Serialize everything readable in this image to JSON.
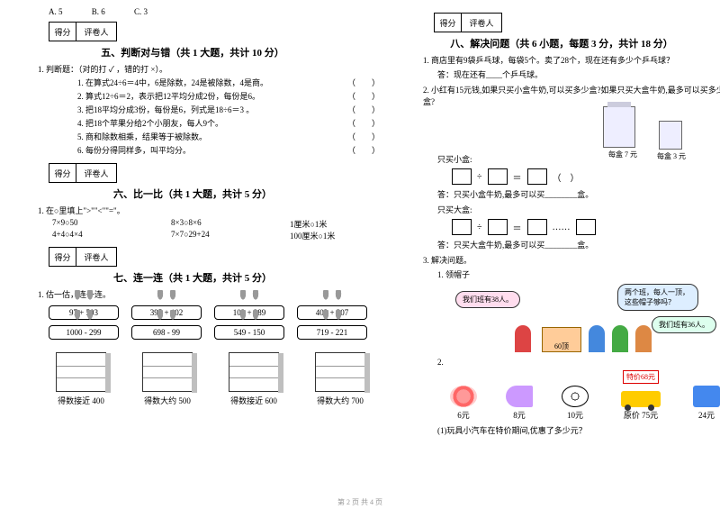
{
  "mc_options": {
    "a": "A. 5",
    "b": "B. 6",
    "c": "C. 3"
  },
  "score_header": {
    "c1": "得分",
    "c2": "评卷人"
  },
  "s5": {
    "title": "五、判断对与错（共 1 大题，共计 10 分）",
    "lead": "1. 判断题：（对的打 ✓ ，错的打 ×）。",
    "items": [
      "1. 在算式24÷6＝4中，6是除数，24是被除数，4是商。",
      "2. 算式12÷6＝2，表示把12平均分成2份，每份是6。",
      "3. 把18平均分成3份，每份是6，列式是18÷6＝3 。",
      "4. 把18个苹果分给2个小朋友，每人9个。",
      "5. 商和除数相乘，结果等于被除数。",
      "6. 每份分得同样多，叫平均分。"
    ],
    "paren": "（　　）"
  },
  "s6": {
    "title": "六、比一比（共 1 大题，共计 5 分）",
    "lead": "1. 在○里填上\">\"\"<\"\"=\"。",
    "rows": [
      [
        "7×9○50",
        "8×3○8×6",
        "1厘米○1米"
      ],
      [
        "4+4○4×4",
        "7×7○29+24",
        "100厘米○1米"
      ]
    ]
  },
  "s7": {
    "title": "七、连一连（共 1 大题，共计 5 分）",
    "lead": "1. 估一估，连一连。",
    "top": [
      "97 + 503",
      "395 + 102",
      "102 + 289",
      "403 + 307"
    ],
    "bot": [
      "1000 - 299",
      "698 - 99",
      "549 - 150",
      "719 - 221"
    ],
    "cabs": [
      "得数接近 400",
      "得数大约 500",
      "得数接近 600",
      "得数大约 700"
    ]
  },
  "s8": {
    "title": "八、解决问题（共 6 小题，每题 3 分，共计 18 分）",
    "q1": "1. 商店里有9袋乒乓球，每袋5个。卖了28个，现在还有多少个乒乓球？",
    "q1a": "答：现在还有____个乒乓球。",
    "q2": "2. 小红有15元钱,如果只买小盒牛奶,可以买多少盒?如果只买大盒牛奶,最多可以买多少盒?",
    "big_price": "每盒 7 元",
    "small_price": "每盒 3 元",
    "only_small": "只买小盒:",
    "ans_small": "答：只买小盒牛奶,最多可以买________盒。",
    "only_big": "只买大盒:",
    "ans_big": "答：只买大盒牛奶,最多可以买________盒。",
    "q3": "3. 解决问题。",
    "q3_1": "1. 领帽子",
    "bub1": "我们班有38人。",
    "bub2": "两个班，每人一顶，这些帽子够吗？",
    "bub3": "我们班有36人。",
    "box_label": "60顶",
    "q3_2": "2.",
    "items": [
      {
        "p": "6元"
      },
      {
        "p": "8元"
      },
      {
        "p": "10元"
      },
      {
        "p": "原价 75元",
        "sale": "特价68元"
      },
      {
        "p": "24元"
      }
    ],
    "q3_2q": "(1)玩具小汽车在特价期间,优惠了多少元？"
  },
  "ops": {
    "div": "÷",
    "eq": "＝",
    "dots": "……"
  },
  "footer": "第 2 页 共 4 页"
}
